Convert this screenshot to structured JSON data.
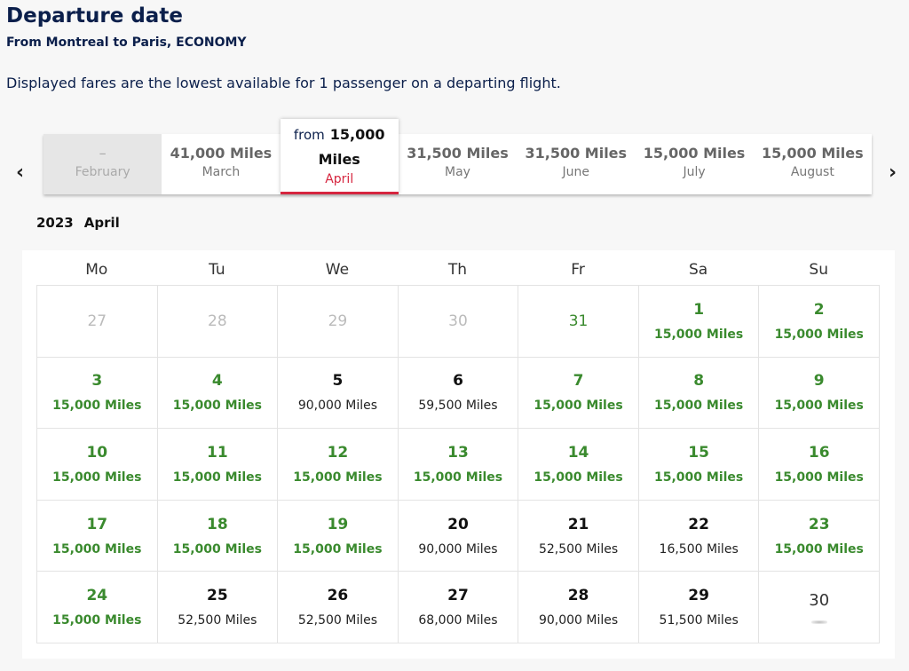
{
  "header": {
    "title": "Departure date",
    "subtitle": "From Montreal to Paris, ECONOMY",
    "note": "Displayed fares are the lowest available for 1 passenger on a departing flight."
  },
  "carousel": {
    "prev_icon": "chevron-left-icon",
    "next_icon": "chevron-right-icon",
    "from_label": "from",
    "months": [
      {
        "miles": "–",
        "month": "February",
        "state": "disabled"
      },
      {
        "miles": "41,000 Miles",
        "month": "March",
        "state": "normal"
      },
      {
        "miles": "15,000 Miles",
        "month": "April",
        "state": "active"
      },
      {
        "miles": "31,500 Miles",
        "month": "May",
        "state": "normal"
      },
      {
        "miles": "31,500 Miles",
        "month": "June",
        "state": "normal"
      },
      {
        "miles": "15,000 Miles",
        "month": "July",
        "state": "normal"
      },
      {
        "miles": "15,000 Miles",
        "month": "August",
        "state": "normal"
      }
    ]
  },
  "calendar": {
    "year": "2023",
    "month": "April",
    "weekdays": [
      "Mo",
      "Tu",
      "We",
      "Th",
      "Fr",
      "Sa",
      "Su"
    ],
    "days": [
      {
        "day": "27",
        "miles": "",
        "state": "past"
      },
      {
        "day": "28",
        "miles": "",
        "state": "past"
      },
      {
        "day": "29",
        "miles": "",
        "state": "past"
      },
      {
        "day": "30",
        "miles": "",
        "state": "past"
      },
      {
        "day": "31",
        "miles": "",
        "state": "plain"
      },
      {
        "day": "1",
        "miles": "15,000 Miles",
        "state": "green"
      },
      {
        "day": "2",
        "miles": "15,000 Miles",
        "state": "green"
      },
      {
        "day": "3",
        "miles": "15,000 Miles",
        "state": "green"
      },
      {
        "day": "4",
        "miles": "15,000 Miles",
        "state": "green"
      },
      {
        "day": "5",
        "miles": "90,000 Miles",
        "state": "normal"
      },
      {
        "day": "6",
        "miles": "59,500 Miles",
        "state": "normal"
      },
      {
        "day": "7",
        "miles": "15,000 Miles",
        "state": "green"
      },
      {
        "day": "8",
        "miles": "15,000 Miles",
        "state": "green"
      },
      {
        "day": "9",
        "miles": "15,000 Miles",
        "state": "green"
      },
      {
        "day": "10",
        "miles": "15,000 Miles",
        "state": "green"
      },
      {
        "day": "11",
        "miles": "15,000 Miles",
        "state": "green"
      },
      {
        "day": "12",
        "miles": "15,000 Miles",
        "state": "green"
      },
      {
        "day": "13",
        "miles": "15,000 Miles",
        "state": "green"
      },
      {
        "day": "14",
        "miles": "15,000 Miles",
        "state": "green"
      },
      {
        "day": "15",
        "miles": "15,000 Miles",
        "state": "green"
      },
      {
        "day": "16",
        "miles": "15,000 Miles",
        "state": "green"
      },
      {
        "day": "17",
        "miles": "15,000 Miles",
        "state": "green"
      },
      {
        "day": "18",
        "miles": "15,000 Miles",
        "state": "green"
      },
      {
        "day": "19",
        "miles": "15,000 Miles",
        "state": "green"
      },
      {
        "day": "20",
        "miles": "90,000 Miles",
        "state": "normal"
      },
      {
        "day": "21",
        "miles": "52,500 Miles",
        "state": "normal"
      },
      {
        "day": "22",
        "miles": "16,500 Miles",
        "state": "normal"
      },
      {
        "day": "23",
        "miles": "15,000 Miles",
        "state": "green"
      },
      {
        "day": "24",
        "miles": "15,000 Miles",
        "state": "green"
      },
      {
        "day": "25",
        "miles": "52,500 Miles",
        "state": "normal"
      },
      {
        "day": "26",
        "miles": "52,500 Miles",
        "state": "normal"
      },
      {
        "day": "27",
        "miles": "68,000 Miles",
        "state": "normal"
      },
      {
        "day": "28",
        "miles": "90,000 Miles",
        "state": "normal"
      },
      {
        "day": "29",
        "miles": "51,500 Miles",
        "state": "normal"
      },
      {
        "day": "30",
        "miles": "",
        "state": "loading"
      }
    ]
  },
  "colors": {
    "navy": "#0b1f4b",
    "accent_red": "#d6263f",
    "fare_green": "#3a8a2e"
  }
}
